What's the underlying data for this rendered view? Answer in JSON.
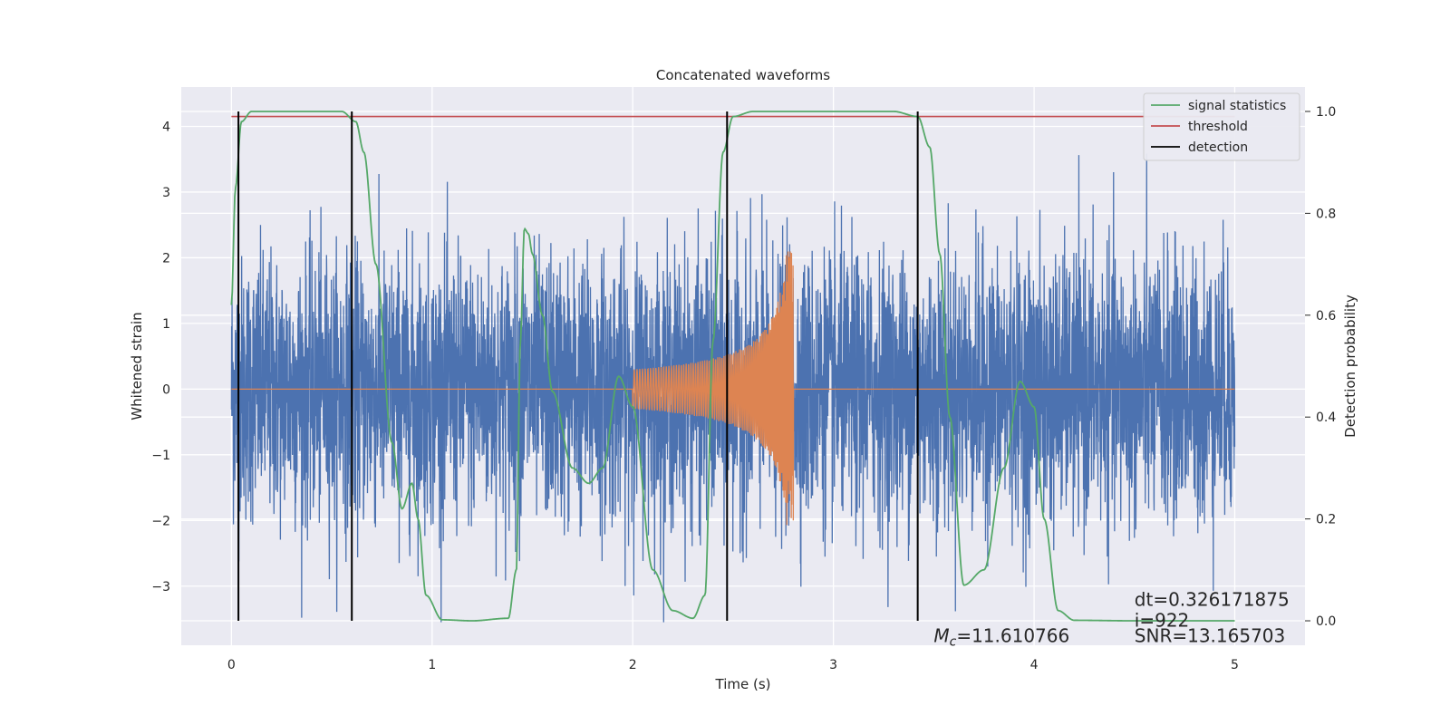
{
  "chart_data": {
    "type": "line",
    "title": "Concatenated waveforms",
    "xlabel": "Time (s)",
    "ylabel": "Whitened strain",
    "y2label": "Detection probability",
    "xlim": [
      -0.25,
      5.35
    ],
    "ylim": [
      -3.9,
      4.6
    ],
    "y2lim": [
      -0.048,
      1.048
    ],
    "xticks": [
      0,
      1,
      2,
      3,
      4,
      5
    ],
    "yticks": [
      -3,
      -2,
      -1,
      0,
      1,
      2,
      3,
      4
    ],
    "y2ticks": [
      0.0,
      0.2,
      0.4,
      0.6,
      0.8,
      1.0
    ],
    "xtick_labels": [
      "0",
      "1",
      "2",
      "3",
      "4",
      "5"
    ],
    "ytick_labels": [
      "−3",
      "−2",
      "−1",
      "0",
      "1",
      "2",
      "3",
      "4"
    ],
    "y2tick_labels": [
      "0.0",
      "0.2",
      "0.4",
      "0.6",
      "0.8",
      "1.0"
    ],
    "grid": true,
    "legend_position": "top-right",
    "series": [
      {
        "name": "signal statistics",
        "axis": "right",
        "color": "#55a868",
        "x": [
          0.0,
          0.02,
          0.05,
          0.1,
          0.2,
          0.4,
          0.55,
          0.62,
          0.66,
          0.72,
          0.8,
          0.85,
          0.9,
          0.93,
          0.97,
          1.05,
          1.2,
          1.38,
          1.42,
          1.44,
          1.46,
          1.48,
          1.5,
          1.55,
          1.6,
          1.7,
          1.78,
          1.85,
          1.93,
          2.0,
          2.1,
          2.2,
          2.3,
          2.36,
          2.4,
          2.45,
          2.5,
          2.6,
          3.0,
          3.3,
          3.42,
          3.48,
          3.53,
          3.58,
          3.65,
          3.75,
          3.85,
          3.93,
          4.0,
          4.05,
          4.12,
          4.2,
          4.5,
          5.0
        ],
        "y": [
          0.62,
          0.85,
          0.98,
          1.0,
          1.0,
          1.0,
          1.0,
          0.98,
          0.92,
          0.7,
          0.35,
          0.22,
          0.27,
          0.2,
          0.05,
          0.002,
          0.0,
          0.005,
          0.1,
          0.55,
          0.77,
          0.76,
          0.72,
          0.6,
          0.45,
          0.3,
          0.27,
          0.3,
          0.48,
          0.42,
          0.1,
          0.02,
          0.005,
          0.05,
          0.55,
          0.92,
          0.99,
          1.0,
          1.0,
          1.0,
          0.99,
          0.93,
          0.72,
          0.4,
          0.07,
          0.1,
          0.3,
          0.47,
          0.42,
          0.2,
          0.02,
          0.001,
          0.0,
          0.0
        ]
      },
      {
        "name": "threshold",
        "axis": "right",
        "color": "#c44e52",
        "x": [
          0.0,
          5.0
        ],
        "y": [
          0.99,
          0.99
        ]
      },
      {
        "name": "detection",
        "axis": "right",
        "color": "#000000",
        "x": [
          0.035,
          0.6,
          2.47,
          3.42
        ],
        "y": [
          1.0,
          1.0,
          1.0,
          1.0
        ]
      },
      {
        "axis": "left",
        "color": "#4c72b0",
        "noise_sigma": 1.0,
        "x_range": [
          0.0,
          5.0
        ]
      },
      {
        "axis": "left",
        "color": "#dd8452",
        "x_range": [
          0.0,
          5.0
        ],
        "chirp_start": 2.0,
        "chirp_end": 2.8,
        "chirp_amp_start": 0.3,
        "chirp_amp_peak": 2.1
      }
    ],
    "annotations": [
      {
        "text": "dt=0.326171875",
        "x": 4.5,
        "y": -3.3
      },
      {
        "text": " i=922",
        "x": 4.5,
        "y": -3.62
      },
      {
        "text_main": "M",
        "text_sub": "c",
        "text_rest": "=11.610766",
        "x": 3.5,
        "y": -3.85
      },
      {
        "text": "SNR=13.165703",
        "x": 4.5,
        "y": -3.85
      }
    ]
  }
}
